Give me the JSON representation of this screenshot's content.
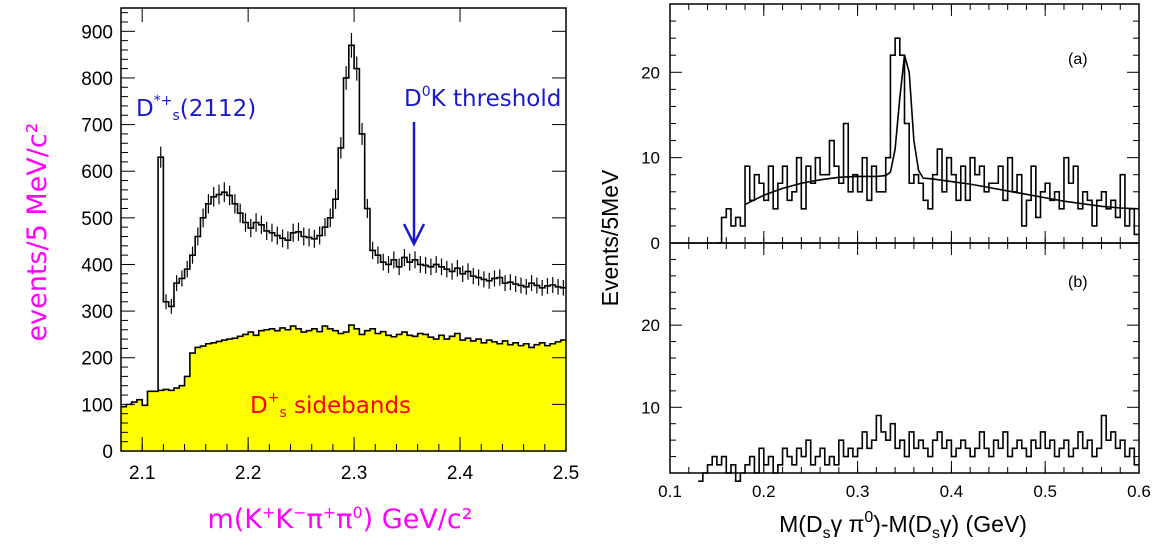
{
  "chart_data": [
    {
      "type": "line",
      "panel": "left",
      "xlabel": "m(K⁺K⁻π⁺π⁰) GeV/c²",
      "ylabel": "events/5 MeV/c²",
      "xlim": [
        2.08,
        2.5
      ],
      "ylim": [
        0,
        950
      ],
      "xticks": [
        "2.1",
        "2.2",
        "2.3",
        "2.4",
        "2.5"
      ],
      "yticks": [
        "0",
        "100",
        "200",
        "300",
        "400",
        "500",
        "600",
        "700",
        "800",
        "900"
      ],
      "annotations": {
        "peak_label": "D*+s(2112)",
        "threshold_label": "D⁰K threshold",
        "sideband_label": "D⁺s sidebands"
      },
      "series": [
        {
          "role": "data",
          "x": [
            2.0825,
            2.0875,
            2.0925,
            2.0975,
            2.1025,
            2.1075,
            2.1125,
            2.1175,
            2.1225,
            2.1275,
            2.1325,
            2.1375,
            2.1425,
            2.1475,
            2.1525,
            2.1575,
            2.1625,
            2.1675,
            2.1725,
            2.1775,
            2.1825,
            2.1875,
            2.1925,
            2.1975,
            2.2025,
            2.2075,
            2.2125,
            2.2175,
            2.2225,
            2.2275,
            2.2325,
            2.2375,
            2.2425,
            2.2475,
            2.2525,
            2.2575,
            2.2625,
            2.2675,
            2.2725,
            2.2775,
            2.2825,
            2.2875,
            2.2925,
            2.2975,
            2.3025,
            2.3075,
            2.3125,
            2.3175,
            2.3225,
            2.3275,
            2.3325,
            2.3375,
            2.3425,
            2.3475,
            2.3525,
            2.3575,
            2.3625,
            2.3675,
            2.3725,
            2.3775,
            2.3825,
            2.3875,
            2.3925,
            2.3975,
            2.4025,
            2.4075,
            2.4125,
            2.4175,
            2.4225,
            2.4275,
            2.4325,
            2.4375,
            2.4425,
            2.4475,
            2.4525,
            2.4575,
            2.4625,
            2.4675,
            2.4725,
            2.4775,
            2.4825,
            2.4875,
            2.4925,
            2.4975
          ],
          "y": [
            null,
            null,
            null,
            null,
            null,
            null,
            null,
            630,
            320,
            310,
            360,
            370,
            390,
            420,
            460,
            500,
            530,
            545,
            550,
            555,
            548,
            530,
            510,
            490,
            478,
            490,
            485,
            472,
            468,
            462,
            456,
            452,
            468,
            470,
            460,
            458,
            455,
            462,
            480,
            500,
            540,
            650,
            800,
            870,
            820,
            680,
            520,
            430,
            420,
            405,
            400,
            410,
            395,
            415,
            405,
            410,
            400,
            398,
            395,
            400,
            395,
            390,
            385,
            392,
            380,
            385,
            375,
            372,
            368,
            365,
            370,
            372,
            360,
            362,
            358,
            355,
            352,
            360,
            355,
            350,
            354,
            356,
            352,
            350
          ],
          "note": "histogram with error bars; values read from plot"
        },
        {
          "role": "sidebands",
          "x": [
            2.0825,
            2.0875,
            2.0925,
            2.0975,
            2.1025,
            2.1075,
            2.1125,
            2.1175,
            2.1225,
            2.1275,
            2.1325,
            2.1375,
            2.1425,
            2.1475,
            2.1525,
            2.1575,
            2.1625,
            2.1675,
            2.1725,
            2.1775,
            2.1825,
            2.1875,
            2.1925,
            2.1975,
            2.2025,
            2.2075,
            2.2125,
            2.2175,
            2.2225,
            2.2275,
            2.2325,
            2.2375,
            2.2425,
            2.2475,
            2.2525,
            2.2575,
            2.2625,
            2.2675,
            2.2725,
            2.2775,
            2.2825,
            2.2875,
            2.2925,
            2.2975,
            2.3025,
            2.3075,
            2.3125,
            2.3175,
            2.3225,
            2.3275,
            2.3325,
            2.3375,
            2.3425,
            2.3475,
            2.3525,
            2.3575,
            2.3625,
            2.3675,
            2.3725,
            2.3775,
            2.3825,
            2.3875,
            2.3925,
            2.3975,
            2.4025,
            2.4075,
            2.4125,
            2.4175,
            2.4225,
            2.4275,
            2.4325,
            2.4375,
            2.4425,
            2.4475,
            2.4525,
            2.4575,
            2.4625,
            2.4675,
            2.4725,
            2.4775,
            2.4825,
            2.4875,
            2.4925,
            2.4975
          ],
          "y": [
            95,
            100,
            105,
            110,
            98,
            128,
            128,
            130,
            132,
            130,
            135,
            140,
            160,
            210,
            222,
            225,
            230,
            232,
            235,
            238,
            240,
            242,
            246,
            250,
            255,
            248,
            258,
            260,
            262,
            258,
            264,
            260,
            268,
            262,
            255,
            258,
            262,
            256,
            268,
            262,
            258,
            252,
            255,
            270,
            262,
            250,
            258,
            262,
            252,
            256,
            248,
            245,
            250,
            255,
            248,
            246,
            252,
            250,
            244,
            240,
            248,
            240,
            246,
            252,
            238,
            242,
            236,
            240,
            232,
            238,
            234,
            230,
            236,
            228,
            232,
            226,
            230,
            222,
            228,
            232,
            226,
            230,
            234,
            238
          ],
          "fill": "#ffff00"
        }
      ]
    },
    {
      "type": "line",
      "panel": "right-top",
      "panel_label": "(a)",
      "xlim": [
        0.1,
        0.6
      ],
      "ylim": [
        0,
        28
      ],
      "yticks": [
        "0",
        "10",
        "20"
      ],
      "series": [
        {
          "role": "data",
          "x": [
            0.1525,
            0.1575,
            0.1625,
            0.1675,
            0.1725,
            0.1775,
            0.1825,
            0.1875,
            0.1925,
            0.1975,
            0.2025,
            0.2075,
            0.2125,
            0.2175,
            0.2225,
            0.2275,
            0.2325,
            0.2375,
            0.2425,
            0.2475,
            0.2525,
            0.2575,
            0.2625,
            0.2675,
            0.2725,
            0.2775,
            0.2825,
            0.2875,
            0.2925,
            0.2975,
            0.3025,
            0.3075,
            0.3125,
            0.3175,
            0.3225,
            0.3275,
            0.3325,
            0.3375,
            0.3425,
            0.3475,
            0.3525,
            0.3575,
            0.3625,
            0.3675,
            0.3725,
            0.3775,
            0.3825,
            0.3875,
            0.3925,
            0.3975,
            0.4025,
            0.4075,
            0.4125,
            0.4175,
            0.4225,
            0.4275,
            0.4325,
            0.4375,
            0.4425,
            0.4475,
            0.4525,
            0.4575,
            0.4625,
            0.4675,
            0.4725,
            0.4775,
            0.4825,
            0.4875,
            0.4925,
            0.4975,
            0.5025,
            0.5075,
            0.5125,
            0.5175,
            0.5225,
            0.5275,
            0.5325,
            0.5375,
            0.5425,
            0.5475,
            0.5525,
            0.5575,
            0.5625,
            0.5675,
            0.5725,
            0.5775,
            0.5825,
            0.5875,
            0.5925,
            0.5975
          ],
          "y": [
            0,
            3,
            4,
            2,
            3,
            2,
            9,
            5,
            8,
            7,
            5,
            9,
            4,
            7,
            9,
            5,
            6,
            10,
            4,
            9,
            7,
            10,
            8,
            8,
            12,
            9,
            7,
            14,
            6,
            8,
            6,
            10,
            5,
            9,
            6,
            6,
            10,
            22,
            24,
            22,
            14,
            7,
            8,
            7,
            5,
            4,
            8,
            11,
            6,
            10,
            8,
            5,
            9,
            5,
            10,
            8,
            9,
            6,
            7,
            7,
            9,
            5,
            10,
            6,
            8,
            2,
            5,
            9,
            3,
            6,
            7,
            5,
            6,
            4,
            10,
            7,
            9,
            4,
            6,
            5,
            2,
            5,
            6,
            4,
            5,
            3,
            8,
            2,
            4,
            1
          ],
          "style": "histogram"
        },
        {
          "role": "fit",
          "x": [
            0.18,
            0.2,
            0.22,
            0.24,
            0.26,
            0.28,
            0.3,
            0.32,
            0.33,
            0.335,
            0.34,
            0.345,
            0.35,
            0.355,
            0.36,
            0.365,
            0.37,
            0.38,
            0.4,
            0.42,
            0.44,
            0.46,
            0.48,
            0.5,
            0.52,
            0.54,
            0.56,
            0.58,
            0.6
          ],
          "y": [
            4.5,
            5.6,
            6.4,
            7.0,
            7.4,
            7.7,
            7.8,
            7.8,
            7.9,
            8.3,
            11,
            17,
            22,
            20,
            12,
            8.5,
            7.6,
            7.5,
            7.2,
            6.9,
            6.5,
            6.1,
            5.7,
            5.3,
            4.9,
            4.6,
            4.3,
            4.1,
            4.0
          ]
        }
      ]
    },
    {
      "type": "line",
      "panel": "right-bottom",
      "panel_label": "(b)",
      "xlim": [
        0.1,
        0.6
      ],
      "ylim": [
        0,
        28
      ],
      "yticks": [
        "10",
        "20"
      ],
      "series": [
        {
          "role": "data",
          "x": [
            0.1325,
            0.1375,
            0.1425,
            0.1475,
            0.1525,
            0.1575,
            0.1625,
            0.1675,
            0.1725,
            0.1775,
            0.1825,
            0.1875,
            0.1925,
            0.1975,
            0.2025,
            0.2075,
            0.2125,
            0.2175,
            0.2225,
            0.2275,
            0.2325,
            0.2375,
            0.2425,
            0.2475,
            0.2525,
            0.2575,
            0.2625,
            0.2675,
            0.2725,
            0.2775,
            0.2825,
            0.2875,
            0.2925,
            0.2975,
            0.3025,
            0.3075,
            0.3125,
            0.3175,
            0.3225,
            0.3275,
            0.3325,
            0.3375,
            0.3425,
            0.3475,
            0.3525,
            0.3575,
            0.3625,
            0.3675,
            0.3725,
            0.3775,
            0.3825,
            0.3875,
            0.3925,
            0.3975,
            0.4025,
            0.4075,
            0.4125,
            0.4175,
            0.4225,
            0.4275,
            0.4325,
            0.4375,
            0.4425,
            0.4475,
            0.4525,
            0.4575,
            0.4625,
            0.4675,
            0.4725,
            0.4775,
            0.4825,
            0.4875,
            0.4925,
            0.4975,
            0.5025,
            0.5075,
            0.5125,
            0.5175,
            0.5225,
            0.5275,
            0.5325,
            0.5375,
            0.5425,
            0.5475,
            0.5525,
            0.5575,
            0.5625,
            0.5675,
            0.5725,
            0.5775,
            0.5825,
            0.5875,
            0.5925,
            0.5975
          ],
          "y": [
            1,
            2,
            3,
            4,
            3,
            4,
            2,
            3,
            1,
            2,
            3,
            4,
            2,
            5,
            3,
            4,
            2,
            3,
            5,
            4,
            3,
            5,
            4,
            6,
            3,
            4,
            5,
            3,
            4,
            3,
            6,
            4,
            5,
            4,
            5,
            7,
            5,
            6,
            9,
            7,
            6,
            8,
            5,
            6,
            4,
            7,
            5,
            6,
            5,
            4,
            6,
            7,
            5,
            6,
            4,
            5,
            6,
            5,
            4,
            5,
            7,
            5,
            4,
            6,
            5,
            7,
            4,
            5,
            6,
            5,
            4,
            6,
            5,
            7,
            5,
            6,
            4,
            5,
            6,
            4,
            5,
            7,
            5,
            6,
            4,
            5,
            9,
            6,
            7,
            5,
            6,
            4,
            5,
            3
          ],
          "style": "histogram"
        }
      ],
      "xlabel": "M(Dsγπ⁰)-M(Dsγ) (GeV)",
      "xticks": [
        "0.1",
        "0.2",
        "0.3",
        "0.4",
        "0.5",
        "0.6"
      ],
      "shared_ylabel": "Events/5MeV"
    }
  ],
  "labels": {
    "left_ylabel": "events/5 MeV/c²",
    "left_xlabel_main": "m(K",
    "left_xlabel_tail": ") GeV/c²",
    "peak_label_main": "D",
    "peak_label_sup": "*+",
    "peak_label_sub": "s",
    "peak_label_tail": "(2112)",
    "threshold_main": "D",
    "threshold_sup": "0",
    "threshold_tail": "K threshold",
    "sideband_main": "D",
    "sideband_sup": "+",
    "sideband_sub": "s",
    "sideband_tail": " sidebands",
    "right_ylabel": "Events/5MeV",
    "right_xlabel": "M(D",
    "panel_a": "(a)",
    "panel_b": "(b)"
  }
}
